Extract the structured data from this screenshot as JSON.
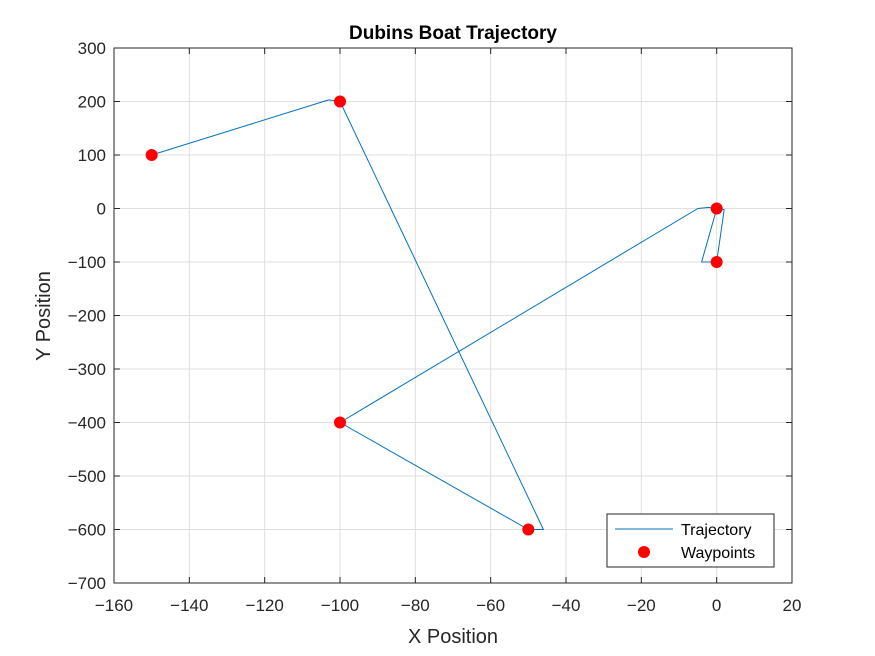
{
  "chart_data": {
    "type": "line",
    "title": "Dubins Boat Trajectory",
    "xlabel": "X Position",
    "ylabel": "Y Position",
    "xlim": [
      -160,
      20
    ],
    "ylim": [
      -700,
      300
    ],
    "xticks": [
      -160,
      -140,
      -120,
      -100,
      -80,
      -60,
      -40,
      -20,
      0,
      20
    ],
    "yticks": [
      -700,
      -600,
      -500,
      -400,
      -300,
      -200,
      -100,
      0,
      100,
      200,
      300
    ],
    "grid": true,
    "legend_position": "bottom-right",
    "series": [
      {
        "name": "Trajectory",
        "kind": "line",
        "color": "#0072BD",
        "x": [
          0,
          2,
          0,
          -4,
          0,
          -2,
          -5,
          -100,
          -50,
          -46,
          -100,
          -103,
          -150
        ],
        "y": [
          0,
          -2,
          -100,
          -100,
          -1,
          2,
          0,
          -400,
          -600,
          -600,
          200,
          203,
          100
        ]
      },
      {
        "name": "Waypoints",
        "kind": "marker",
        "color": "#FF0000",
        "x": [
          0,
          0,
          -100,
          -50,
          -100,
          -150
        ],
        "y": [
          0,
          -100,
          -400,
          -600,
          200,
          100
        ]
      }
    ]
  }
}
